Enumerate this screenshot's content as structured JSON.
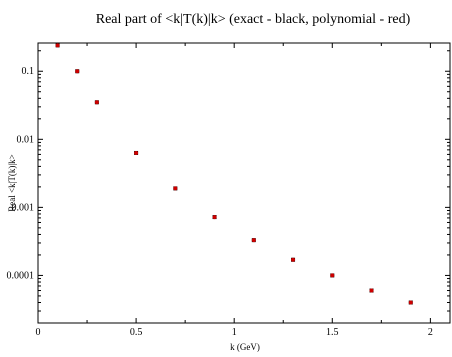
{
  "chart_data": {
    "type": "scatter",
    "title": "Real part of <k|T(k)|k>  (exact - black, polynomial - red)",
    "xlabel": "k (GeV)",
    "ylabel": "Real <k|T(k)|k>",
    "xlim": [
      0,
      2.1
    ],
    "ylim": [
      2e-05,
      0.26
    ],
    "yscale": "log",
    "grid": false,
    "x_ticks": [
      0,
      0.5,
      1,
      1.5,
      2
    ],
    "x_tick_labels": [
      "0",
      "0.5",
      "1",
      "1.5",
      "2"
    ],
    "y_ticks": [
      0.0001,
      0.001,
      0.01,
      0.1
    ],
    "y_tick_labels": [
      "0.0001",
      "0.001",
      "0.01",
      "0.1"
    ],
    "series": [
      {
        "name": "exact",
        "color": "#000000",
        "x": [
          0.1,
          0.2,
          0.3,
          0.5,
          0.7,
          0.9,
          1.1,
          1.3,
          1.5,
          1.7,
          1.9
        ],
        "y": [
          0.24,
          0.1,
          0.035,
          0.0063,
          0.0019,
          0.00072,
          0.00033,
          0.00017,
          0.0001,
          6e-05,
          4e-05
        ]
      },
      {
        "name": "polynomial",
        "color": "#cc0000",
        "x": [
          0.1,
          0.2,
          0.3,
          0.5,
          0.7,
          0.9,
          1.1,
          1.3,
          1.5,
          1.7,
          1.9
        ],
        "y": [
          0.24,
          0.1,
          0.035,
          0.0063,
          0.0019,
          0.00072,
          0.00033,
          0.00017,
          0.0001,
          6e-05,
          4e-05
        ]
      }
    ]
  }
}
